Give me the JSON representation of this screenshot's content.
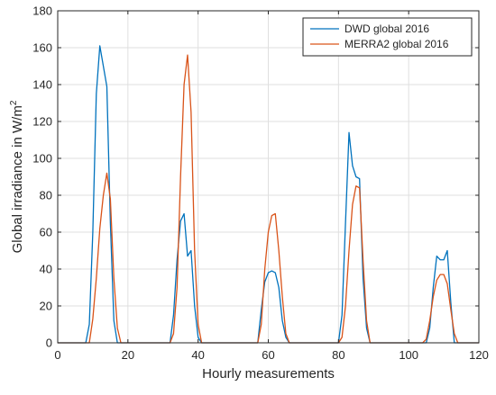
{
  "chart_data": {
    "type": "line",
    "title": "",
    "xlabel": "Hourly measurements",
    "ylabel": "Global irradiance in W/m",
    "ylabel_superscript": "2",
    "xlim": [
      0,
      120
    ],
    "ylim": [
      0,
      180
    ],
    "xticks": [
      0,
      20,
      40,
      60,
      80,
      100,
      120
    ],
    "yticks": [
      0,
      20,
      40,
      60,
      80,
      100,
      120,
      140,
      160,
      180
    ],
    "grid": true,
    "legend_position": "top-right",
    "series": [
      {
        "name": "DWD global 2016",
        "color": "#0072BD",
        "x": [
          0,
          8,
          9,
          10,
          11,
          12,
          13,
          14,
          15,
          16,
          17,
          18,
          31,
          32,
          33,
          34,
          35,
          36,
          37,
          38,
          39,
          40,
          41,
          42,
          56,
          57,
          58,
          59,
          60,
          61,
          62,
          63,
          64,
          65,
          66,
          79,
          80,
          81,
          82,
          83,
          84,
          85,
          86,
          87,
          88,
          89,
          90,
          104,
          105,
          106,
          107,
          108,
          109,
          110,
          111,
          112,
          113,
          120
        ],
        "y": [
          0,
          0,
          10,
          60,
          135,
          161,
          150,
          139,
          65,
          12,
          0,
          0,
          0,
          0,
          15,
          45,
          66,
          70,
          47,
          50,
          20,
          3,
          0,
          0,
          0,
          0,
          18,
          33,
          38,
          39,
          38,
          30,
          12,
          3,
          0,
          0,
          0,
          15,
          65,
          114,
          96,
          90,
          89,
          35,
          8,
          0,
          0,
          0,
          0,
          8,
          30,
          47,
          45,
          45,
          50,
          22,
          0,
          0
        ]
      },
      {
        "name": "MERRA2 global 2016",
        "color": "#D95319",
        "x": [
          0,
          9,
          10,
          11,
          12,
          13,
          14,
          15,
          16,
          17,
          18,
          32,
          33,
          34,
          35,
          36,
          37,
          38,
          39,
          40,
          41,
          42,
          56,
          57,
          58,
          59,
          60,
          61,
          62,
          63,
          64,
          65,
          66,
          80,
          81,
          82,
          83,
          84,
          85,
          86,
          87,
          88,
          89,
          90,
          104,
          105,
          106,
          107,
          108,
          109,
          110,
          111,
          112,
          113,
          114,
          120
        ],
        "y": [
          0,
          0,
          13,
          35,
          62,
          80,
          92,
          78,
          35,
          8,
          0,
          0,
          5,
          30,
          90,
          140,
          156,
          125,
          50,
          10,
          0,
          0,
          0,
          0,
          10,
          40,
          60,
          69,
          70,
          50,
          25,
          5,
          0,
          0,
          3,
          20,
          50,
          75,
          85,
          84,
          45,
          12,
          0,
          0,
          0,
          2,
          12,
          25,
          34,
          37,
          37,
          32,
          18,
          5,
          0,
          0
        ]
      }
    ]
  }
}
